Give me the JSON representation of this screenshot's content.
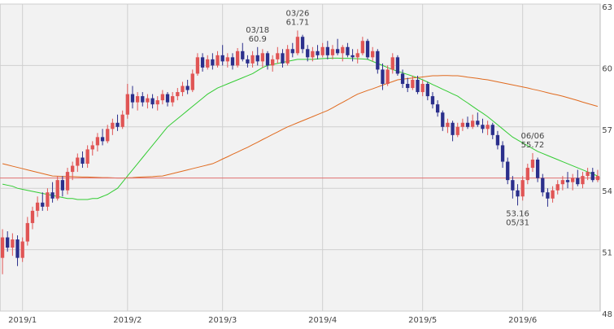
{
  "chart_data": {
    "type": "candlestick",
    "categories": [
      null,
      null,
      null,
      null,
      "2019/1",
      null,
      null,
      null,
      null,
      null,
      null,
      null,
      null,
      null,
      null,
      null,
      null,
      null,
      null,
      null,
      null,
      null,
      null,
      null,
      null,
      "2019/2",
      null,
      null,
      null,
      null,
      null,
      null,
      null,
      null,
      null,
      null,
      null,
      null,
      null,
      null,
      null,
      null,
      null,
      null,
      "2019/3",
      null,
      null,
      null,
      null,
      null,
      null,
      null,
      null,
      null,
      null,
      null,
      null,
      null,
      null,
      null,
      null,
      null,
      null,
      null,
      "2019/4",
      null,
      null,
      null,
      null,
      null,
      null,
      null,
      null,
      null,
      null,
      null,
      null,
      null,
      null,
      null,
      null,
      null,
      null,
      null,
      "2019/5",
      null,
      null,
      null,
      null,
      null,
      null,
      null,
      null,
      null,
      null,
      null,
      null,
      null,
      null,
      null,
      null,
      null,
      null,
      null,
      "2019/6",
      null,
      null,
      null,
      null,
      null,
      null,
      null,
      null,
      null,
      null,
      null,
      null,
      null,
      null,
      null
    ],
    "ohlc": [
      [
        50.6,
        52.0,
        49.8,
        51.6
      ],
      [
        51.6,
        51.9,
        50.9,
        51.1
      ],
      [
        51.1,
        51.8,
        50.7,
        51.5
      ],
      [
        51.5,
        51.7,
        50.2,
        50.6
      ],
      [
        50.6,
        51.6,
        50.4,
        51.4
      ],
      [
        51.4,
        52.6,
        51.2,
        52.3
      ],
      [
        52.3,
        53.1,
        52.0,
        52.9
      ],
      [
        52.9,
        53.6,
        52.6,
        53.3
      ],
      [
        53.3,
        53.8,
        52.9,
        53.1
      ],
      [
        53.1,
        54.0,
        52.9,
        53.8
      ],
      [
        53.8,
        54.3,
        53.3,
        53.5
      ],
      [
        53.5,
        54.6,
        53.4,
        54.4
      ],
      [
        54.4,
        54.6,
        53.6,
        53.9
      ],
      [
        53.9,
        55.0,
        53.7,
        54.8
      ],
      [
        54.8,
        55.3,
        54.4,
        55.1
      ],
      [
        55.1,
        55.7,
        54.8,
        55.5
      ],
      [
        55.5,
        55.8,
        55.0,
        55.2
      ],
      [
        55.2,
        56.1,
        55.0,
        55.9
      ],
      [
        55.9,
        56.3,
        55.6,
        56.1
      ],
      [
        56.1,
        56.7,
        55.8,
        56.5
      ],
      [
        56.5,
        56.9,
        56.1,
        56.3
      ],
      [
        56.3,
        57.1,
        56.2,
        56.9
      ],
      [
        56.9,
        57.4,
        56.6,
        57.2
      ],
      [
        57.2,
        57.6,
        56.8,
        57.0
      ],
      [
        57.0,
        57.8,
        56.9,
        57.6
      ],
      [
        57.6,
        59.1,
        57.4,
        58.6
      ],
      [
        58.6,
        59.0,
        57.9,
        58.2
      ],
      [
        58.2,
        58.7,
        57.8,
        58.5
      ],
      [
        58.5,
        58.7,
        58.0,
        58.2
      ],
      [
        58.2,
        58.6,
        57.9,
        58.4
      ],
      [
        58.4,
        58.6,
        57.9,
        58.1
      ],
      [
        58.1,
        58.5,
        57.8,
        58.3
      ],
      [
        58.3,
        58.8,
        58.1,
        58.6
      ],
      [
        58.6,
        58.7,
        58.0,
        58.2
      ],
      [
        58.2,
        58.7,
        58.0,
        58.5
      ],
      [
        58.5,
        58.9,
        58.3,
        58.7
      ],
      [
        58.7,
        59.2,
        58.5,
        59.0
      ],
      [
        59.0,
        59.3,
        58.6,
        58.8
      ],
      [
        58.8,
        59.8,
        58.7,
        59.6
      ],
      [
        59.6,
        60.6,
        59.5,
        60.4
      ],
      [
        60.4,
        60.6,
        59.7,
        59.9
      ],
      [
        59.9,
        60.5,
        59.8,
        60.3
      ],
      [
        60.3,
        60.6,
        59.8,
        60.0
      ],
      [
        60.0,
        60.7,
        59.9,
        60.5
      ],
      [
        60.5,
        61.0,
        60.0,
        60.2
      ],
      [
        60.2,
        60.6,
        59.9,
        60.4
      ],
      [
        60.4,
        60.6,
        59.8,
        60.0
      ],
      [
        60.0,
        60.85,
        59.9,
        60.7
      ],
      [
        60.7,
        61.1,
        60.2,
        60.3
      ],
      [
        60.3,
        60.5,
        59.9,
        60.1
      ],
      [
        60.1,
        60.7,
        59.9,
        60.5
      ],
      [
        60.5,
        60.9,
        60.0,
        60.2
      ],
      [
        60.2,
        60.8,
        59.9,
        60.6
      ],
      [
        60.6,
        60.7,
        59.8,
        60.0
      ],
      [
        60.0,
        60.5,
        59.7,
        60.3
      ],
      [
        60.3,
        60.9,
        60.1,
        60.6
      ],
      [
        60.6,
        60.8,
        59.9,
        60.1
      ],
      [
        60.1,
        61.0,
        60.0,
        60.8
      ],
      [
        60.8,
        61.1,
        60.4,
        60.6
      ],
      [
        60.6,
        61.71,
        60.5,
        61.4
      ],
      [
        61.4,
        61.5,
        60.6,
        60.8
      ],
      [
        60.8,
        61.0,
        60.2,
        60.4
      ],
      [
        60.4,
        60.9,
        60.2,
        60.7
      ],
      [
        60.7,
        61.0,
        60.3,
        60.5
      ],
      [
        60.5,
        61.1,
        60.4,
        60.9
      ],
      [
        60.9,
        61.2,
        60.3,
        60.5
      ],
      [
        60.5,
        61.0,
        60.3,
        60.8
      ],
      [
        60.8,
        61.3,
        60.5,
        60.6
      ],
      [
        60.6,
        61.0,
        60.2,
        60.9
      ],
      [
        60.9,
        61.1,
        60.4,
        60.5
      ],
      [
        60.5,
        60.8,
        60.2,
        60.4
      ],
      [
        60.4,
        60.8,
        60.1,
        60.6
      ],
      [
        60.6,
        61.4,
        60.5,
        61.2
      ],
      [
        61.2,
        61.3,
        60.3,
        60.4
      ],
      [
        60.4,
        60.9,
        60.2,
        60.7
      ],
      [
        60.7,
        60.8,
        59.6,
        59.8
      ],
      [
        59.8,
        60.1,
        58.8,
        59.1
      ],
      [
        59.1,
        60.0,
        59.0,
        59.8
      ],
      [
        59.8,
        60.6,
        59.6,
        60.4
      ],
      [
        60.4,
        60.5,
        59.5,
        59.6
      ],
      [
        59.6,
        59.8,
        58.9,
        59.1
      ],
      [
        59.1,
        59.4,
        58.7,
        58.9
      ],
      [
        58.9,
        59.5,
        58.8,
        59.3
      ],
      [
        59.3,
        59.5,
        58.6,
        58.7
      ],
      [
        58.7,
        59.3,
        58.5,
        59.1
      ],
      [
        59.1,
        59.2,
        58.3,
        58.5
      ],
      [
        58.5,
        58.7,
        57.9,
        58.1
      ],
      [
        58.1,
        58.3,
        57.5,
        57.7
      ],
      [
        57.7,
        57.8,
        56.8,
        57.0
      ],
      [
        57.0,
        57.4,
        56.7,
        57.2
      ],
      [
        57.2,
        57.3,
        56.3,
        56.6
      ],
      [
        56.6,
        57.2,
        56.5,
        57.0
      ],
      [
        57.0,
        57.4,
        56.8,
        57.2
      ],
      [
        57.2,
        57.5,
        56.9,
        57.0
      ],
      [
        57.0,
        57.6,
        56.9,
        57.3
      ],
      [
        57.3,
        57.7,
        57.0,
        57.1
      ],
      [
        57.1,
        57.4,
        56.7,
        56.9
      ],
      [
        56.9,
        57.3,
        56.6,
        57.1
      ],
      [
        57.1,
        57.2,
        56.4,
        56.6
      ],
      [
        56.6,
        56.8,
        55.9,
        56.1
      ],
      [
        56.1,
        56.3,
        55.0,
        55.3
      ],
      [
        55.3,
        55.5,
        54.2,
        54.4
      ],
      [
        54.4,
        54.6,
        53.5,
        53.9
      ],
      [
        53.9,
        54.2,
        53.16,
        53.6
      ],
      [
        53.6,
        54.6,
        53.4,
        54.4
      ],
      [
        54.4,
        55.2,
        54.2,
        55.0
      ],
      [
        55.0,
        55.72,
        54.8,
        55.4
      ],
      [
        55.4,
        55.5,
        54.3,
        54.5
      ],
      [
        54.5,
        54.7,
        53.6,
        53.8
      ],
      [
        53.8,
        54.0,
        53.1,
        53.5
      ],
      [
        53.5,
        54.1,
        53.3,
        53.9
      ],
      [
        53.9,
        54.4,
        53.7,
        54.2
      ],
      [
        54.2,
        54.6,
        53.9,
        54.4
      ],
      [
        54.4,
        54.8,
        54.0,
        54.3
      ],
      [
        54.3,
        54.7,
        53.9,
        54.5
      ],
      [
        54.5,
        54.9,
        54.1,
        54.2
      ],
      [
        54.2,
        54.8,
        54.0,
        54.6
      ],
      [
        54.6,
        55.0,
        54.4,
        54.8
      ],
      [
        54.8,
        55.0,
        54.3,
        54.4
      ],
      [
        54.4,
        54.9,
        54.3,
        54.6
      ]
    ],
    "up_color": "#e05555",
    "down_color": "#2b2f8c",
    "series": [
      {
        "color": "#33cc33",
        "values": [
          54.2,
          54.15,
          54.1,
          54.0,
          53.95,
          53.9,
          53.85,
          53.8,
          53.75,
          53.7,
          53.65,
          53.6,
          53.55,
          53.5,
          53.5,
          53.45,
          53.45,
          53.45,
          53.5,
          53.5,
          53.6,
          53.7,
          53.85,
          54.0,
          54.3,
          54.6,
          54.9,
          55.2,
          55.5,
          55.8,
          56.1,
          56.4,
          56.7,
          57.0,
          57.2,
          57.4,
          57.6,
          57.8,
          58.0,
          58.2,
          58.4,
          58.6,
          58.75,
          58.9,
          59.0,
          59.1,
          59.2,
          59.3,
          59.4,
          59.5,
          59.6,
          59.75,
          59.9,
          60.0,
          60.05,
          60.1,
          60.15,
          60.2,
          60.25,
          60.3,
          60.3,
          60.3,
          60.3,
          60.32,
          60.34,
          60.35,
          60.36,
          60.36,
          60.35,
          60.35,
          60.34,
          60.33,
          60.32,
          60.3,
          60.2,
          60.1,
          60.0,
          59.9,
          59.8,
          59.72,
          59.64,
          59.56,
          59.48,
          59.4,
          59.3,
          59.19,
          59.07,
          58.96,
          58.84,
          58.73,
          58.61,
          58.5,
          58.33,
          58.17,
          58.0,
          57.83,
          57.67,
          57.5,
          57.3,
          57.1,
          56.9,
          56.7,
          56.5,
          56.36,
          56.22,
          56.08,
          55.94,
          55.8,
          55.7,
          55.6,
          55.5,
          55.4,
          55.3,
          55.2,
          55.1,
          55.0,
          54.9,
          54.8,
          54.7,
          54.6
        ]
      },
      {
        "color": "#e06a1e",
        "values": [
          55.2,
          55.14,
          55.08,
          55.02,
          54.96,
          54.9,
          54.84,
          54.78,
          54.72,
          54.66,
          54.6,
          54.59,
          54.58,
          54.58,
          54.57,
          54.56,
          54.55,
          54.55,
          54.54,
          54.53,
          54.52,
          54.52,
          54.51,
          54.5,
          54.5,
          54.51,
          54.52,
          54.54,
          54.55,
          54.56,
          54.57,
          54.59,
          54.6,
          54.66,
          54.72,
          54.78,
          54.84,
          54.9,
          54.96,
          55.02,
          55.08,
          55.14,
          55.2,
          55.31,
          55.43,
          55.54,
          55.66,
          55.77,
          55.89,
          56.0,
          56.13,
          56.25,
          56.38,
          56.5,
          56.63,
          56.75,
          56.88,
          57.0,
          57.1,
          57.2,
          57.3,
          57.4,
          57.5,
          57.6,
          57.7,
          57.8,
          57.93,
          58.07,
          58.2,
          58.33,
          58.47,
          58.6,
          58.69,
          58.78,
          58.86,
          58.95,
          59.04,
          59.13,
          59.21,
          59.3,
          59.33,
          59.36,
          59.39,
          59.41,
          59.44,
          59.47,
          59.5,
          59.5,
          59.51,
          59.51,
          59.5,
          59.5,
          59.47,
          59.43,
          59.4,
          59.37,
          59.33,
          59.3,
          59.25,
          59.2,
          59.15,
          59.1,
          59.05,
          59.0,
          58.95,
          58.9,
          58.84,
          58.79,
          58.73,
          58.67,
          58.61,
          58.56,
          58.5,
          58.43,
          58.36,
          58.29,
          58.21,
          58.14,
          58.07,
          58.0
        ]
      }
    ],
    "current": {
      "value": 54.5,
      "color": "#e07070"
    },
    "annotations": [
      {
        "date": "03/18",
        "value": 60.9,
        "kind": "high"
      },
      {
        "date": "03/26",
        "value": 61.71,
        "kind": "high"
      },
      {
        "date": "06/06",
        "value": 55.72,
        "kind": "high"
      },
      {
        "date": "05/31",
        "value": 53.16,
        "kind": "low"
      }
    ],
    "ylim": [
      48,
      63
    ],
    "yticks": [
      48,
      51,
      54,
      57,
      60,
      63
    ],
    "grid": true
  }
}
